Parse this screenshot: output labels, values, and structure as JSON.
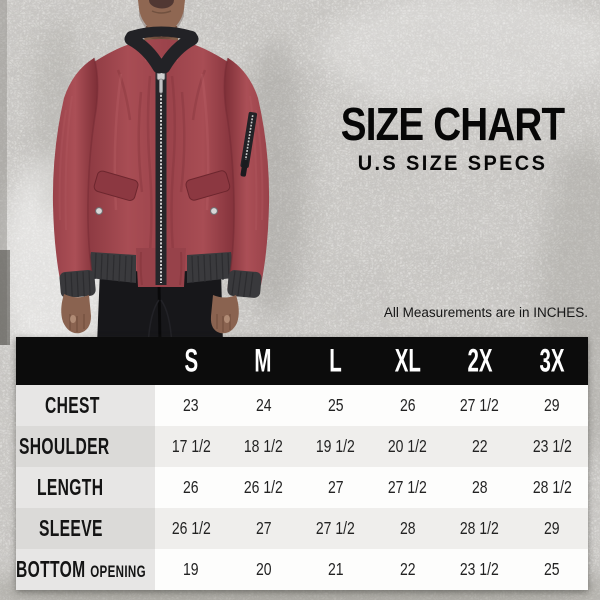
{
  "title": {
    "text": "SIZE CHART",
    "subtitle": "U.S SIZE SPECS"
  },
  "note": "All Measurements are in INCHES.",
  "photo": {
    "label": "model wearing maroon bomber jacket"
  },
  "colors": {
    "wall": "#cac8c5",
    "jacket": "#9e454c",
    "jacket_shadow": "#86343c",
    "trim_black": "#2d2d30",
    "header_bg": "#0c0c0c",
    "skin": "#8f6752",
    "jeans": "#17171a",
    "zipper_silver": "#d6d6d6"
  },
  "chart_data": {
    "type": "table",
    "title": "SIZE CHART",
    "subtitle": "U.S SIZE SPECS",
    "note": "All Measurements are in INCHES.",
    "unit": "inches",
    "columns": [
      "S",
      "M",
      "L",
      "XL",
      "2X",
      "3X"
    ],
    "rows": [
      {
        "label": "CHEST",
        "sublabel": "",
        "values": [
          "23",
          "24",
          "25",
          "26",
          "27 1/2",
          "29"
        ]
      },
      {
        "label": "SHOULDER",
        "sublabel": "",
        "values": [
          "17 1/2",
          "18 1/2",
          "19 1/2",
          "20 1/2",
          "22",
          "23 1/2"
        ]
      },
      {
        "label": "LENGTH",
        "sublabel": "",
        "values": [
          "26",
          "26 1/2",
          "27",
          "27 1/2",
          "28",
          "28 1/2"
        ]
      },
      {
        "label": "SLEEVE",
        "sublabel": "",
        "values": [
          "26 1/2",
          "27",
          "27 1/2",
          "28",
          "28 1/2",
          "29"
        ]
      },
      {
        "label": "BOTTOM",
        "sublabel": "OPENING",
        "values": [
          "19",
          "20",
          "21",
          "22",
          "23 1/2",
          "25"
        ]
      }
    ]
  }
}
